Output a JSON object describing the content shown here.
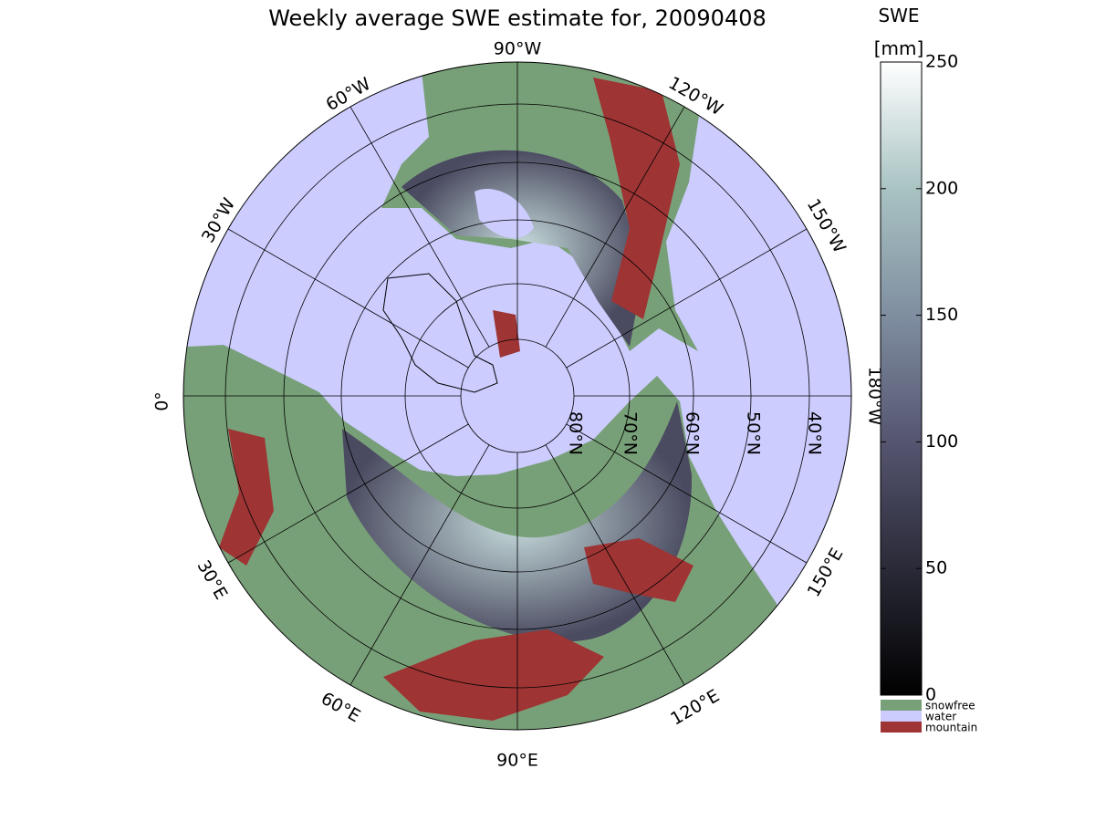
{
  "title": "Weekly average SWE estimate for, 20090408",
  "longitude_labels": [
    "90°W",
    "60°W",
    "120°W",
    "30°W",
    "150°W",
    "0°",
    "180°W",
    "30°E",
    "150°E",
    "60°E",
    "120°E",
    "90°E"
  ],
  "latitude_labels": [
    "80°N",
    "70°N",
    "60°N",
    "50°N",
    "40°N"
  ],
  "colorbar": {
    "label": [
      "SWE",
      "[mm]"
    ],
    "lim": [
      0,
      250
    ],
    "ticks": [
      0,
      50,
      100,
      150,
      200,
      250
    ],
    "colors": [
      "#000000",
      "#2a2a38",
      "#555570",
      "#7f8ea0",
      "#a9c3c3",
      "#ffffff"
    ]
  },
  "legend": [
    {
      "name": "snowfree",
      "color": "#78a078"
    },
    {
      "name": "water",
      "color": "#ccccff"
    },
    {
      "name": "mountain",
      "color": "#9e3434"
    }
  ]
}
